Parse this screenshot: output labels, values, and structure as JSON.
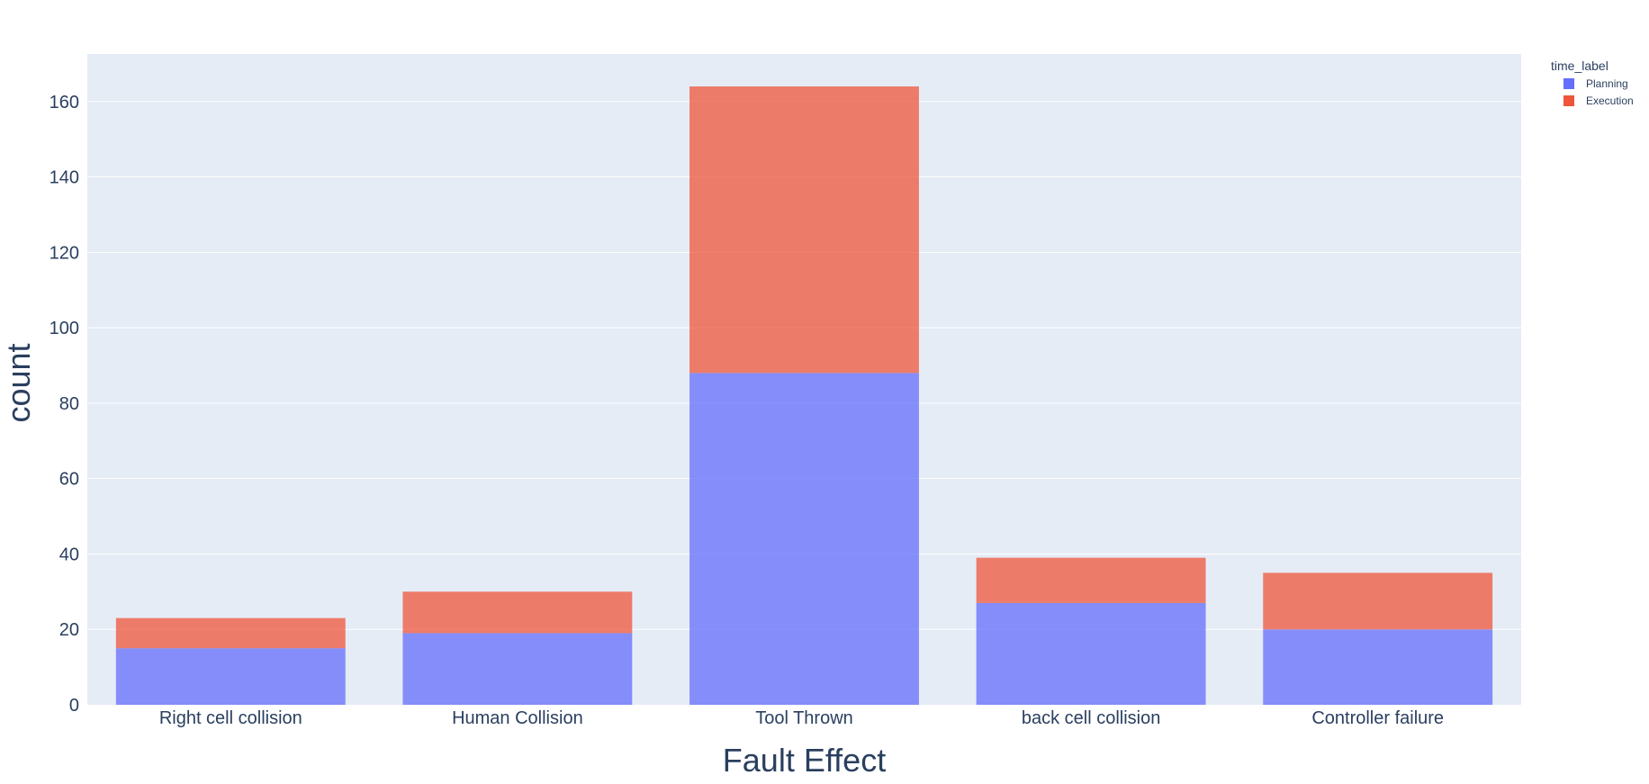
{
  "chart_data": {
    "type": "bar",
    "barmode": "stack",
    "categories": [
      "Right cell collision",
      "Human Collision",
      "Tool Thrown",
      "back cell collision",
      "Controller failure"
    ],
    "series": [
      {
        "name": "Planning",
        "values": [
          15,
          19,
          88,
          27,
          20
        ],
        "color": "#636efa"
      },
      {
        "name": "Execution",
        "values": [
          8,
          11,
          76,
          12,
          15
        ],
        "color": "#ef553b"
      }
    ],
    "xlabel": "Fault Effect",
    "ylabel": "count",
    "ylim": [
      0,
      172.6
    ],
    "yticks": [
      0,
      20,
      40,
      60,
      80,
      100,
      120,
      140,
      160
    ],
    "legend_title": "time_label",
    "legend_position": "top-right",
    "grid": true,
    "plot_background": "#e5ecf6",
    "bar_opacity": 0.75
  }
}
